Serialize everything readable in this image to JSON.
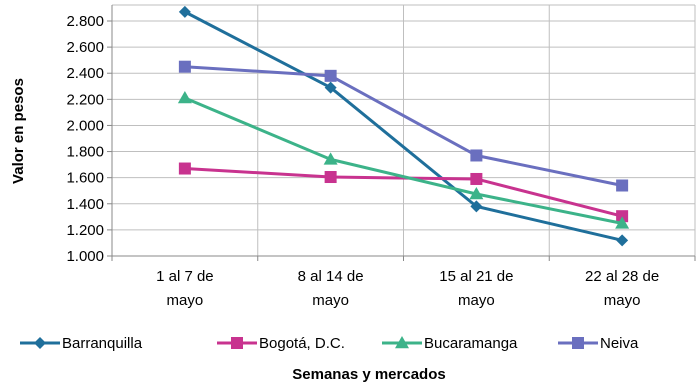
{
  "chart_data": {
    "type": "line",
    "categories": [
      [
        "1 al 7 de",
        "mayo"
      ],
      [
        "8 al 14 de",
        "mayo"
      ],
      [
        "15 al 21 de",
        "mayo"
      ],
      [
        "22 al 28 de",
        "mayo"
      ]
    ],
    "series": [
      {
        "name": "Barranquilla",
        "values": [
          2870,
          2290,
          1380,
          1120
        ],
        "color": "#1f6f9b",
        "marker": "diamond"
      },
      {
        "name": "Bogotá, D.C.",
        "values": [
          1670,
          1605,
          1590,
          1305
        ],
        "color": "#c8338f",
        "marker": "square"
      },
      {
        "name": "Bucaramanga",
        "values": [
          2210,
          1740,
          1475,
          1250
        ],
        "color": "#3cb389",
        "marker": "triangle"
      },
      {
        "name": "Neiva",
        "values": [
          2450,
          2380,
          1770,
          1540
        ],
        "color": "#6a6fbf",
        "marker": "square"
      }
    ],
    "ylim": [
      1000,
      2800
    ],
    "yticks": [
      1000,
      1200,
      1400,
      1600,
      1800,
      2000,
      2200,
      2400,
      2600,
      2800
    ],
    "ytick_labels": [
      "1.000",
      "1.200",
      "1.400",
      "1.600",
      "1.800",
      "2.000",
      "2.200",
      "2.400",
      "2.600",
      "2.800"
    ],
    "ylabel": "Valor en pesos",
    "xlabel": "Semanas y mercados",
    "grid": true,
    "legend_position": "bottom"
  }
}
